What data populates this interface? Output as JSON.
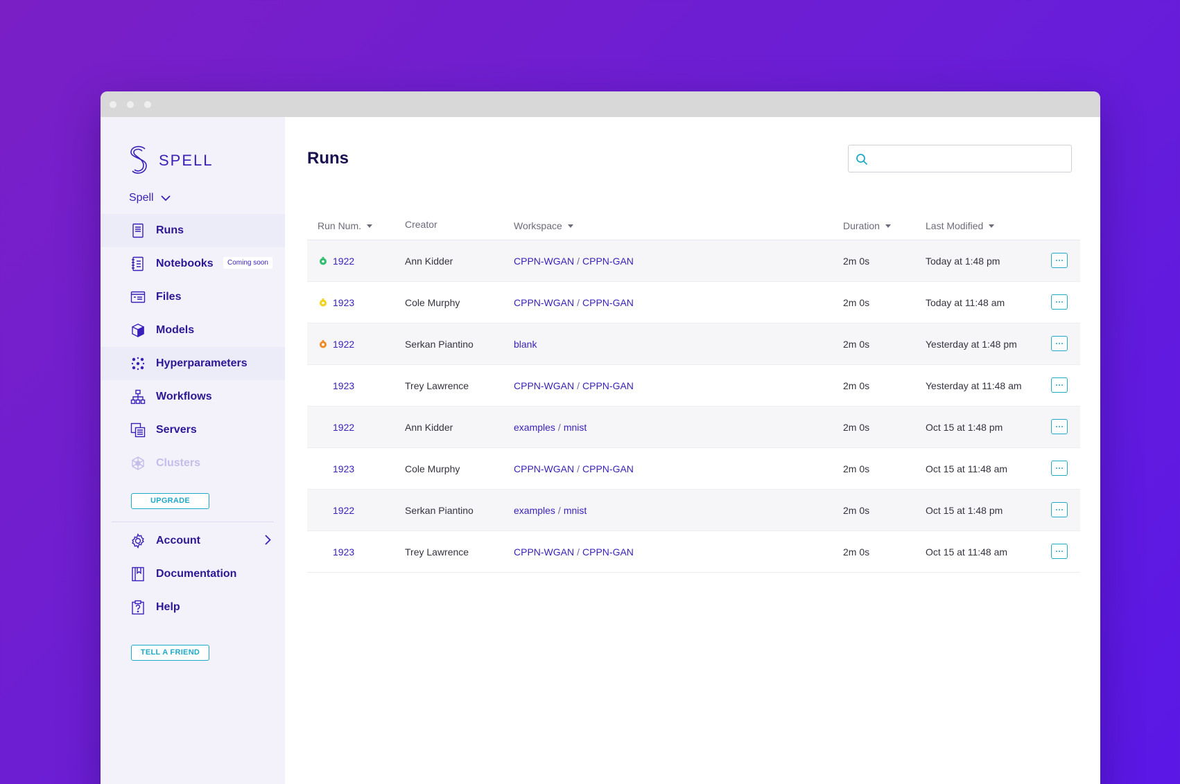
{
  "app": {
    "brand": "SPELL",
    "org": "Spell"
  },
  "sidebar": {
    "items": [
      {
        "label": "Runs",
        "icon": "document-icon"
      },
      {
        "label": "Notebooks",
        "icon": "notebook-icon",
        "badge": "Coming soon"
      },
      {
        "label": "Files",
        "icon": "files-icon"
      },
      {
        "label": "Models",
        "icon": "cube-icon"
      },
      {
        "label": "Hyperparameters",
        "icon": "hyperparameters-icon"
      },
      {
        "label": "Workflows",
        "icon": "workflow-icon"
      },
      {
        "label": "Servers",
        "icon": "servers-icon"
      },
      {
        "label": "Clusters",
        "icon": "clusters-icon"
      }
    ],
    "upgrade_label": "UPGRADE",
    "bottom_items": [
      {
        "label": "Account",
        "icon": "gear-icon"
      },
      {
        "label": "Documentation",
        "icon": "book-icon"
      },
      {
        "label": "Help",
        "icon": "help-icon"
      }
    ],
    "friend_label": "TELL A FRIEND"
  },
  "main": {
    "title": "Runs",
    "search": {
      "placeholder": "",
      "value": ""
    },
    "columns": {
      "run": "Run Num.",
      "creator": "Creator",
      "workspace": "Workspace",
      "duration": "Duration",
      "modified": "Last Modified"
    },
    "rows": [
      {
        "status": "complete",
        "status_color": "#2fbf71",
        "run": "1922",
        "creator": "Ann Kidder",
        "ws_a": "CPPN-WGAN",
        "ws_b": "CPPN-GAN",
        "duration": "2m 0s",
        "modified": "Today at 1:48 pm"
      },
      {
        "status": "running",
        "status_color": "#f2d31b",
        "run": "1923",
        "creator": "Cole Murphy",
        "ws_a": "CPPN-WGAN",
        "ws_b": "CPPN-GAN",
        "duration": "2m 0s",
        "modified": "Today at 11:48 am"
      },
      {
        "status": "stopped",
        "status_color": "#f08a24",
        "run": "1922",
        "creator": "Serkan Piantino",
        "ws_a": "blank",
        "ws_b": "",
        "duration": "2m 0s",
        "modified": "Yesterday  at 1:48 pm"
      },
      {
        "status": "",
        "status_color": "",
        "run": "1923",
        "creator": "Trey Lawrence",
        "ws_a": "CPPN-WGAN",
        "ws_b": "CPPN-GAN",
        "duration": "2m 0s",
        "modified": "Yesterday at 11:48 am"
      },
      {
        "status": "",
        "status_color": "",
        "run": "1922",
        "creator": "Ann Kidder",
        "ws_a": "examples",
        "ws_b": "mnist",
        "duration": "2m 0s",
        "modified": "Oct 15  at 1:48 pm"
      },
      {
        "status": "",
        "status_color": "",
        "run": "1923",
        "creator": "Cole Murphy",
        "ws_a": "CPPN-WGAN",
        "ws_b": "CPPN-GAN",
        "duration": "2m 0s",
        "modified": "Oct 15 at 11:48 am"
      },
      {
        "status": "",
        "status_color": "",
        "run": "1922",
        "creator": "Serkan Piantino",
        "ws_a": "examples",
        "ws_b": "mnist",
        "duration": "2m 0s",
        "modified": "Oct 15  at 1:48 pm"
      },
      {
        "status": "",
        "status_color": "",
        "run": "1923",
        "creator": "Trey Lawrence",
        "ws_a": "CPPN-WGAN",
        "ws_b": "CPPN-GAN",
        "duration": "2m 0s",
        "modified": "Oct 15 at 11:48 am"
      }
    ]
  },
  "colors": {
    "accent": "#3a1fb8",
    "teal": "#1fa9c9",
    "sidebar_bg": "#f3f2fb"
  }
}
